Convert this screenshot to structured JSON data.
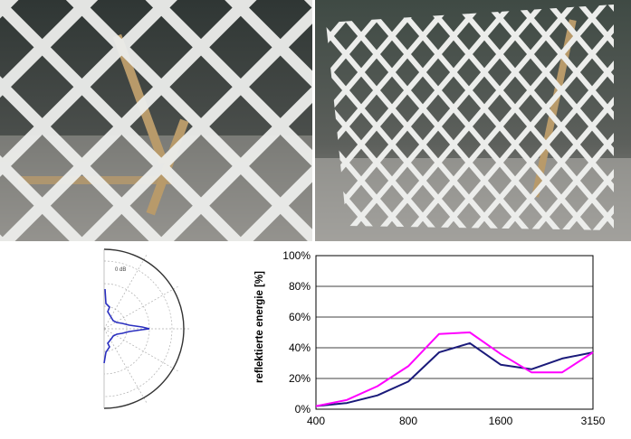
{
  "polar": {
    "ring_label": "0 dB"
  },
  "chart_data": {
    "type": "line",
    "ylabel": "reflektierte energie [%]",
    "xlabel": "",
    "x_tick_labels": [
      "400",
      "800",
      "1600",
      "3150"
    ],
    "y_tick_labels": [
      "0%",
      "20%",
      "40%",
      "60%",
      "80%",
      "100%"
    ],
    "ylim": [
      0,
      100
    ],
    "grid": "horizontal",
    "categories": [
      "400",
      "500",
      "630",
      "800",
      "1000",
      "1250",
      "1600",
      "2000",
      "2500",
      "3150"
    ],
    "series": [
      {
        "color": "#1a1a7a",
        "values": [
          2,
          4,
          9,
          18,
          37,
          43,
          29,
          26,
          33,
          37
        ]
      },
      {
        "color": "#ff00ff",
        "values": [
          2,
          6,
          15,
          28,
          49,
          50,
          36,
          24,
          24,
          37
        ]
      }
    ]
  },
  "colors": {
    "photo_background_dark": "#3a3f3c",
    "lattice": "#ecedeb",
    "polar_line": "#2a2fbf",
    "plot_border": "#000000"
  }
}
